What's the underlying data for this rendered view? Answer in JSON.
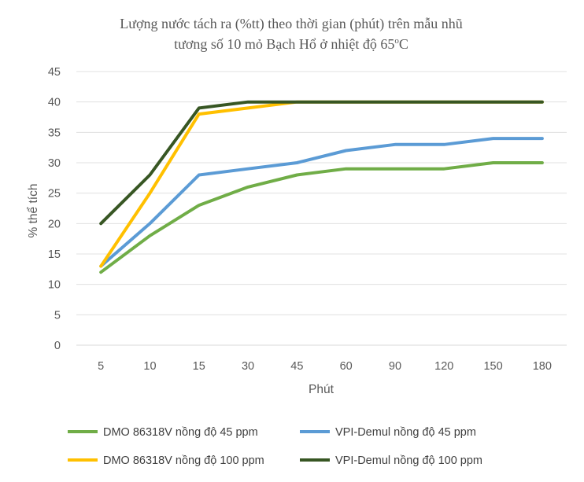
{
  "chart_data": {
    "type": "line",
    "title_lines": [
      "Lượng nước tách ra (%tt) theo thời gian (phút) trên mẫu nhũ",
      "tương số 10 mỏ Bạch Hổ ở nhiệt độ 65oC"
    ],
    "title_superscript": "o",
    "xlabel": "Phút",
    "ylabel": "% thể tích",
    "categories": [
      "5",
      "10",
      "15",
      "30",
      "45",
      "60",
      "90",
      "120",
      "150",
      "180"
    ],
    "ylim": [
      0,
      45
    ],
    "yticks": [
      0,
      5,
      10,
      15,
      20,
      25,
      30,
      35,
      40,
      45
    ],
    "grid": true,
    "legend_position": "bottom",
    "series": [
      {
        "name": "DMO 86318V nồng độ 45 ppm",
        "color": "#70AD47",
        "values": [
          12,
          18,
          23,
          26,
          28,
          29,
          29,
          29,
          30,
          30
        ]
      },
      {
        "name": "VPI-Demul nồng độ 45 ppm",
        "color": "#5B9BD5",
        "values": [
          13,
          20,
          28,
          29,
          30,
          32,
          33,
          33,
          34,
          34
        ]
      },
      {
        "name": "DMO 86318V nồng độ 100 ppm",
        "color": "#FFC000",
        "values": [
          13,
          25,
          38,
          39,
          40,
          40,
          40,
          40,
          40,
          40
        ]
      },
      {
        "name": "VPI-Demul nồng độ 100 ppm",
        "color": "#375623",
        "values": [
          20,
          28,
          39,
          40,
          40,
          40,
          40,
          40,
          40,
          40
        ]
      }
    ]
  }
}
